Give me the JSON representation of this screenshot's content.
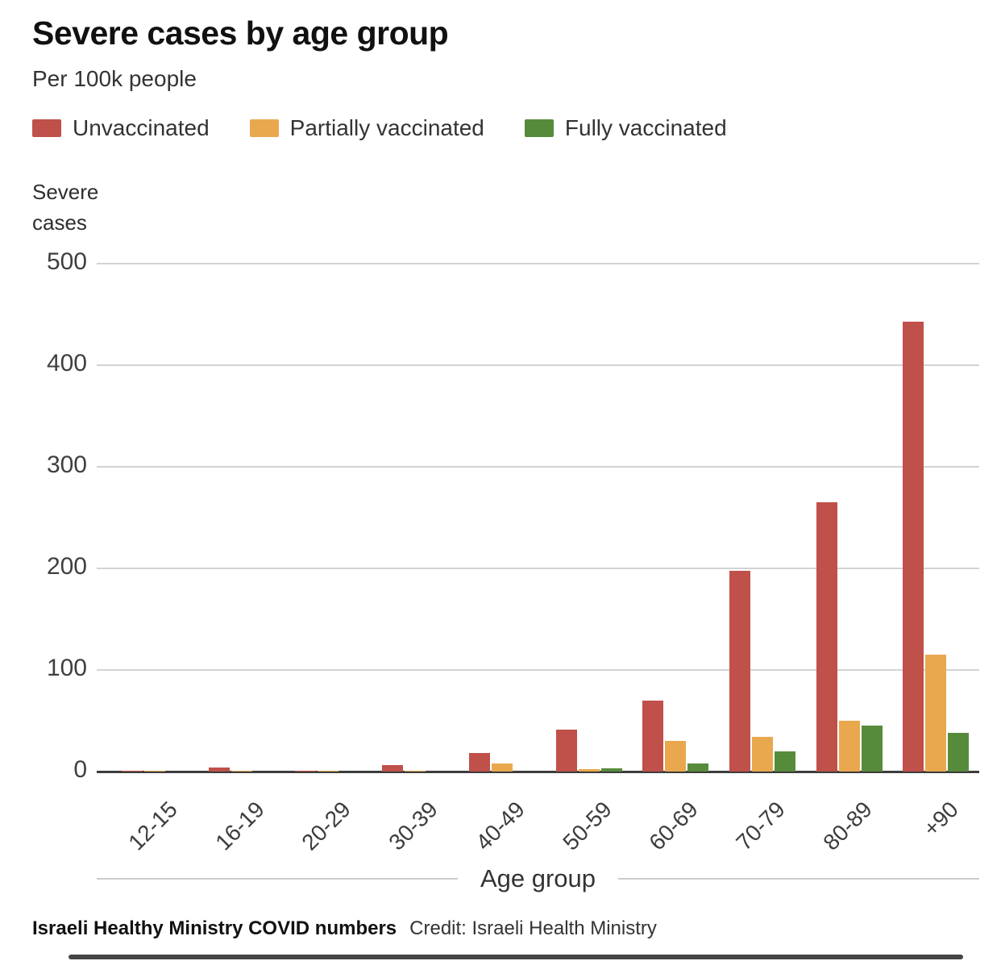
{
  "title": "Severe cases by age group",
  "subtitle": "Per 100k people",
  "legend": [
    {
      "label": "Unvaccinated",
      "color": "#c0504a"
    },
    {
      "label": "Partially vaccinated",
      "color": "#e9a84e"
    },
    {
      "label": "Fully vaccinated",
      "color": "#578b3c"
    }
  ],
  "y_axis_title": "Severe\ncases",
  "footer": {
    "source": "Israeli Healthy Ministry COVID numbers",
    "credit": "Credit: Israeli Health Ministry"
  },
  "chart_data": {
    "type": "bar",
    "title": "Severe cases by age group",
    "subtitle": "Per 100k people",
    "xlabel": "Age group",
    "ylabel": "Severe cases",
    "ylim": [
      0,
      500
    ],
    "yticks": [
      500,
      400,
      300,
      200,
      100,
      0
    ],
    "grid": true,
    "legend_position": "top",
    "categories": [
      "12-15",
      "16-19",
      "20-29",
      "30-39",
      "40-49",
      "50-59",
      "60-69",
      "70-79",
      "80-89",
      "+90"
    ],
    "series": [
      {
        "name": "Unvaccinated",
        "color": "#c0504a",
        "values": [
          1,
          4,
          1,
          6,
          18,
          41,
          70,
          198,
          265,
          443
        ]
      },
      {
        "name": "Partially vaccinated",
        "color": "#e9a84e",
        "values": [
          1,
          1,
          1,
          1,
          8,
          2,
          30,
          34,
          50,
          115
        ]
      },
      {
        "name": "Fully vaccinated",
        "color": "#578b3c",
        "values": [
          0,
          0,
          0,
          0,
          0,
          3,
          8,
          20,
          45,
          38
        ]
      }
    ]
  }
}
